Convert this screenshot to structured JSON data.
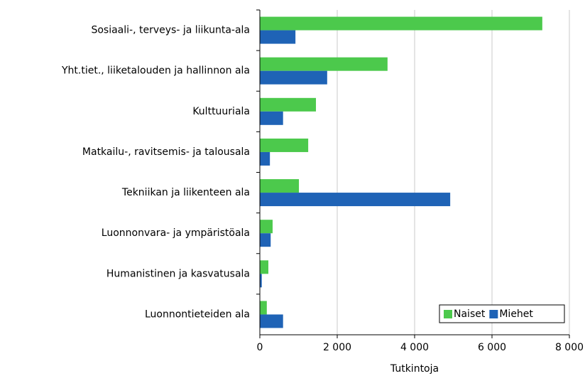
{
  "chart_data": {
    "type": "barh",
    "categories": [
      "Sosiaali-, terveys- ja liikunta-ala",
      "Yht.tiet., liiketalouden ja hallinnon ala",
      "Kulttuuriala",
      "Matkailu-, ravitsemis- ja talousala",
      "Tekniikan ja liikenteen ala",
      "Luonnonvara- ja ympäristöala",
      "Humanistinen ja kasvatusala",
      "Luonnontieteiden ala"
    ],
    "series": [
      {
        "name": "Naiset",
        "color": "#4cc94c",
        "values": [
          7300,
          3300,
          1450,
          1250,
          1010,
          330,
          220,
          180
        ]
      },
      {
        "name": "Miehet",
        "color": "#1f63b6",
        "values": [
          920,
          1740,
          600,
          260,
          4920,
          280,
          50,
          600
        ]
      }
    ],
    "xlim": [
      0,
      8000
    ],
    "xticks": [
      0,
      {
        "value": 2000,
        "label": "2 000"
      },
      {
        "value": 4000,
        "label": "4 000"
      },
      {
        "value": 6000,
        "label": "6 000"
      },
      {
        "value": 8000,
        "label": "8 000"
      }
    ],
    "xlabel": "Tutkintoja",
    "grid": true,
    "legend": "lower right"
  }
}
